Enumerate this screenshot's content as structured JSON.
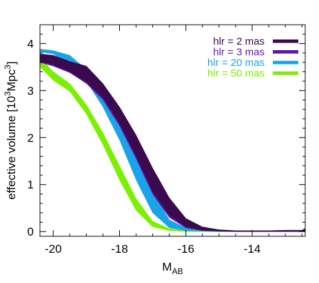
{
  "chart_data": {
    "type": "area",
    "xlabel": {
      "main": "M",
      "sub": "AB"
    },
    "ylabel": {
      "prefix": "effective volume [10",
      "sup1": "3",
      "mid": "Mpc",
      "sup2": "3",
      "suffix": "]"
    },
    "xlim": [
      -20.4,
      -12.4
    ],
    "ylim": [
      -0.1,
      4.4
    ],
    "xticks": [
      -20,
      -18,
      -16,
      -14
    ],
    "yticks": [
      0,
      1,
      2,
      3,
      4
    ],
    "x_tick_labels": [
      "-20",
      "-18",
      "-16",
      "-14"
    ],
    "y_tick_labels": [
      "0",
      "1",
      "2",
      "3",
      "4"
    ],
    "legend_position": "top-right",
    "series": [
      {
        "name": "hlr =   2 mas",
        "color": "#3b0a4e",
        "x": [
          -20.4,
          -20.0,
          -19.5,
          -19.0,
          -18.5,
          -18.0,
          -17.5,
          -17.0,
          -16.5,
          -16.0,
          -15.5,
          -15.0,
          -14.5,
          -14.0,
          -13.5,
          -13.0,
          -12.5,
          -12.4
        ],
        "upper": [
          3.78,
          3.75,
          3.62,
          3.52,
          3.15,
          2.65,
          2.05,
          1.35,
          0.72,
          0.28,
          0.1,
          0.04,
          0.02,
          0.02,
          0.02,
          0.03,
          0.03,
          0.07
        ],
        "lower": [
          3.62,
          3.55,
          3.4,
          3.18,
          2.85,
          2.3,
          1.6,
          0.85,
          0.35,
          0.1,
          0.03,
          0.01,
          0.0,
          0.0,
          0.0,
          0.0,
          0.0,
          0.0
        ]
      },
      {
        "name": "hlr =   3 mas",
        "color": "#5e16b0",
        "x": [
          -20.4,
          -20.0,
          -19.5,
          -19.0,
          -18.5,
          -18.0,
          -17.5,
          -17.0,
          -16.5,
          -16.0,
          -15.5,
          -15.0,
          -14.5,
          -14.0,
          -13.5,
          -13.0,
          -12.5,
          -12.4
        ],
        "upper": [
          3.76,
          3.72,
          3.6,
          3.48,
          3.1,
          2.6,
          2.0,
          1.3,
          0.68,
          0.25,
          0.08,
          0.03,
          0.02,
          0.02,
          0.02,
          0.02,
          0.02,
          0.03
        ],
        "lower": [
          3.6,
          3.52,
          3.38,
          3.15,
          2.8,
          2.25,
          1.55,
          0.8,
          0.3,
          0.08,
          0.02,
          0.01,
          0.0,
          0.0,
          0.0,
          0.0,
          0.0,
          0.0
        ]
      },
      {
        "name": "hlr = 20 mas",
        "color": "#1aa3e8",
        "x": [
          -20.4,
          -20.0,
          -19.5,
          -19.0,
          -18.5,
          -18.0,
          -17.5,
          -17.0,
          -16.5,
          -16.0,
          -15.5,
          -15.0,
          -14.5,
          -14.0,
          -13.5,
          -13.0,
          -12.5,
          -12.4
        ],
        "upper": [
          3.88,
          3.85,
          3.75,
          3.45,
          3.0,
          2.45,
          1.65,
          0.85,
          0.25,
          0.08,
          0.03,
          0.02,
          0.01,
          0.01,
          0.01,
          0.01,
          0.01,
          0.01
        ],
        "lower": [
          3.82,
          3.78,
          3.55,
          3.2,
          2.65,
          1.95,
          1.1,
          0.4,
          0.08,
          0.02,
          0.01,
          0.0,
          0.0,
          0.0,
          0.0,
          0.0,
          0.0,
          0.0
        ]
      },
      {
        "name": "hlr = 50 mas",
        "color": "#7cf000",
        "x": [
          -20.4,
          -20.0,
          -19.5,
          -19.0,
          -18.5,
          -18.0,
          -17.5,
          -17.0,
          -16.5,
          -16.0,
          -15.5,
          -15.0,
          -14.5,
          -14.0,
          -13.5,
          -13.0,
          -12.5,
          -12.4
        ],
        "upper": [
          3.7,
          3.4,
          3.15,
          2.7,
          2.1,
          1.4,
          0.7,
          0.22,
          0.06,
          0.02,
          0.01,
          0.0,
          0.0,
          0.0,
          0.0,
          0.0,
          0.0,
          0.0
        ],
        "lower": [
          3.5,
          3.22,
          2.98,
          2.5,
          1.85,
          1.1,
          0.45,
          0.1,
          0.02,
          0.0,
          0.0,
          0.0,
          0.0,
          0.0,
          0.0,
          0.0,
          0.0,
          0.0
        ]
      }
    ]
  }
}
